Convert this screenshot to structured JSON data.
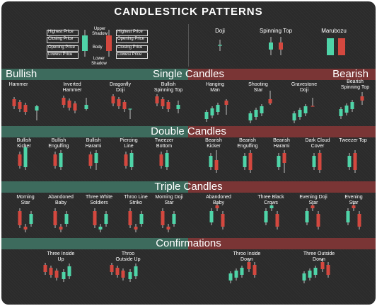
{
  "title": "CANDLESTICK PATTERNS",
  "colors": {
    "bull": "#4fd4a8",
    "bear": "#d4483f",
    "wick": "#e8e8e8"
  },
  "anatomy": {
    "left": [
      "Highest Price",
      "Closing Price",
      "Opening Price",
      "Lowest Price"
    ],
    "center": [
      "Upper Shadow",
      "Body",
      "Lower Shadow"
    ],
    "right": [
      "Highest Price",
      "Opening Price",
      "Closing Price",
      "Lowest Price"
    ]
  },
  "basic": [
    {
      "label": "Doji"
    },
    {
      "label": "Spinning Top"
    },
    {
      "label": "Marubozu"
    }
  ],
  "sections": {
    "single": {
      "title": "Single Candles",
      "bull_label": "Bullish",
      "bear_label": "Bearish"
    },
    "double": {
      "title": "Double Candles"
    },
    "triple": {
      "title": "Triple Candles"
    },
    "confirm": {
      "title": "Confirmations"
    }
  },
  "single_bull": [
    "Hammer",
    "Inverted Hammer",
    "Dragonfly Doji",
    "Bullish Spinning Top"
  ],
  "single_bear": [
    "Hanging Man",
    "Shooting Star",
    "Gravestone Doji",
    "Bearish Spinning Top"
  ],
  "double_bull": [
    "Bullish Kicker",
    "Bullish Engulfing",
    "Bullish Harami",
    "Piercing Line",
    "Tweezer Bottom"
  ],
  "double_bear": [
    "Bearish Kicker",
    "Bearish Engulfing",
    "Bearish Harami",
    "Dark Cloud Cover",
    "Tweezer Top"
  ],
  "triple_bull": [
    "Morning Star",
    "Abandoned Baby",
    "Three White Soldiers",
    "Throo Line Striko",
    "Morning Doji Star"
  ],
  "triple_bear": [
    "Abandoned Baby",
    "Three Black Crows",
    "Evening Doji Star",
    "Evening Star"
  ],
  "confirm_bull": [
    "Three Inside Up",
    "Throo Outside Up"
  ],
  "confirm_bear": [
    "Throo Inside Down",
    "Three Outside Down"
  ]
}
